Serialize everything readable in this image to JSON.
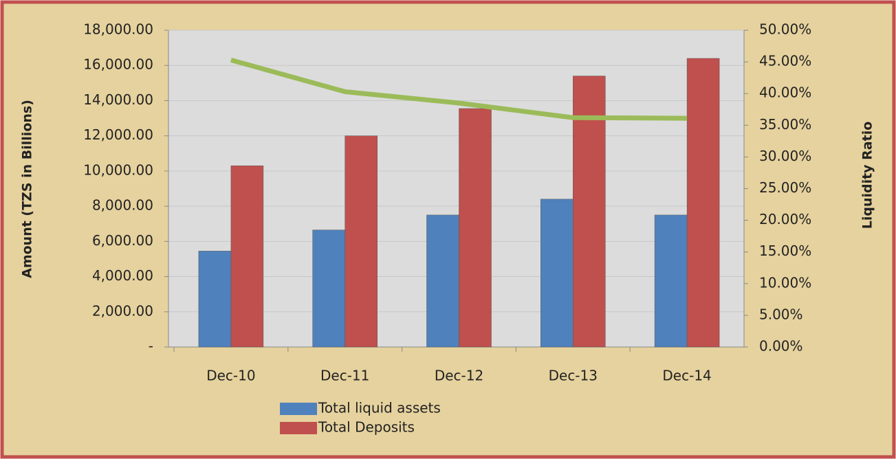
{
  "chart_data": {
    "type": "bar",
    "categories": [
      "Dec-10",
      "Dec-11",
      "Dec-12",
      "Dec-13",
      "Dec-14"
    ],
    "series": [
      {
        "name": "Total liquid assets",
        "color": "#4f81bd",
        "values": [
          5450,
          6650,
          7500,
          8400,
          7500
        ]
      },
      {
        "name": "Total Deposits",
        "color": "#c0504d",
        "values": [
          10300,
          12000,
          13550,
          15400,
          16400
        ]
      },
      {
        "type": "line",
        "color": "#9bbb59",
        "axis": "y2",
        "values": [
          45.3,
          40.3,
          38.5,
          36.2,
          36.1
        ]
      }
    ],
    "ylabel": "Amount (TZS in Billions)",
    "y2label": "Liquidity Ratio",
    "ylim": [
      0,
      18000
    ],
    "yticks": [
      {
        "value": 0,
        "label": "-"
      },
      {
        "value": 2000,
        "label": "2,000.00"
      },
      {
        "value": 4000,
        "label": "4,000.00"
      },
      {
        "value": 6000,
        "label": "6,000.00"
      },
      {
        "value": 8000,
        "label": "8,000.00"
      },
      {
        "value": 10000,
        "label": "10,000.00"
      },
      {
        "value": 12000,
        "label": "12,000.00"
      },
      {
        "value": 14000,
        "label": "14,000.00"
      },
      {
        "value": 16000,
        "label": "16,000.00"
      },
      {
        "value": 18000,
        "label": "18,000.00"
      }
    ],
    "y2lim": [
      0,
      50
    ],
    "y2ticks": [
      {
        "value": 0,
        "label": "0.00%"
      },
      {
        "value": 5,
        "label": "5.00%"
      },
      {
        "value": 10,
        "label": "10.00%"
      },
      {
        "value": 15,
        "label": "15.00%"
      },
      {
        "value": 20,
        "label": "20.00%"
      },
      {
        "value": 25,
        "label": "25.00%"
      },
      {
        "value": 30,
        "label": "30.00%"
      },
      {
        "value": 35,
        "label": "35.00%"
      },
      {
        "value": 40,
        "label": "40.00%"
      },
      {
        "value": 45,
        "label": "45.00%"
      },
      {
        "value": 50,
        "label": "50.00%"
      }
    ],
    "grid": true
  }
}
